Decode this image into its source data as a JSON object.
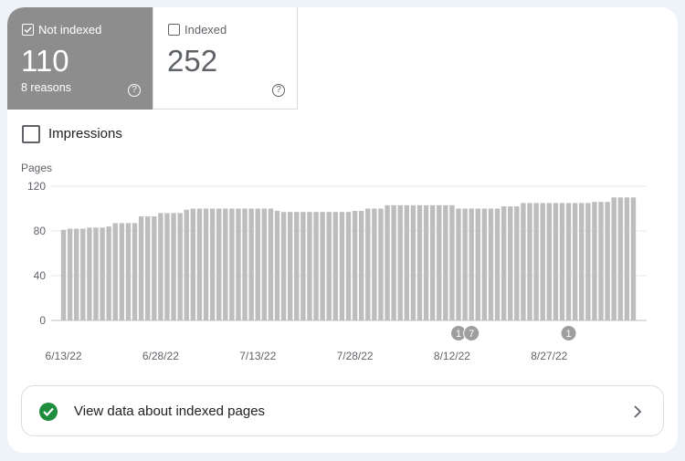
{
  "cards": [
    {
      "label": "Not indexed",
      "value": 110,
      "sub": "8 reasons"
    },
    {
      "label": "Indexed",
      "value": 252
    }
  ],
  "impressions_label": "Impressions",
  "chart_data": {
    "type": "bar",
    "y_label": "Pages",
    "categories": [
      "6/13/22",
      null,
      null,
      null,
      null,
      null,
      null,
      null,
      null,
      null,
      null,
      null,
      null,
      null,
      null,
      "6/28/22",
      null,
      null,
      null,
      null,
      null,
      null,
      null,
      null,
      null,
      null,
      null,
      null,
      null,
      null,
      "7/13/22",
      null,
      null,
      null,
      null,
      null,
      null,
      null,
      null,
      null,
      null,
      null,
      null,
      null,
      null,
      "7/28/22",
      null,
      null,
      null,
      null,
      null,
      null,
      null,
      null,
      null,
      null,
      null,
      null,
      null,
      null,
      "8/12/22",
      null,
      null,
      null,
      null,
      null,
      null,
      null,
      null,
      null,
      null,
      null,
      null,
      null,
      null,
      "8/27/22",
      null,
      null,
      null,
      null,
      null,
      null,
      null,
      null,
      null,
      null,
      null,
      null,
      null
    ],
    "values": [
      81,
      82,
      82,
      82,
      83,
      83,
      83,
      84,
      87,
      87,
      87,
      87,
      93,
      93,
      93,
      96,
      96,
      96,
      96,
      99,
      100,
      100,
      100,
      100,
      100,
      100,
      100,
      100,
      100,
      100,
      100,
      100,
      100,
      98,
      97,
      97,
      97,
      97,
      97,
      97,
      97,
      97,
      97,
      97,
      97,
      98,
      98,
      100,
      100,
      100,
      103,
      103,
      103,
      103,
      103,
      103,
      103,
      103,
      103,
      103,
      103,
      100,
      100,
      100,
      100,
      100,
      100,
      100,
      102,
      102,
      102,
      105,
      105,
      105,
      105,
      105,
      105,
      105,
      105,
      105,
      105,
      105,
      106,
      106,
      106,
      110,
      110,
      110,
      110
    ],
    "color": "#bdbdbd",
    "ylim": [
      0,
      120
    ],
    "yticks": [
      0,
      40,
      80,
      120
    ],
    "grid": true,
    "annotations": [
      {
        "label": "1",
        "index": 61
      },
      {
        "label": "7",
        "index": 63
      },
      {
        "label": "1",
        "index": 78
      }
    ]
  },
  "footer": {
    "link_text": "View data about indexed pages"
  }
}
